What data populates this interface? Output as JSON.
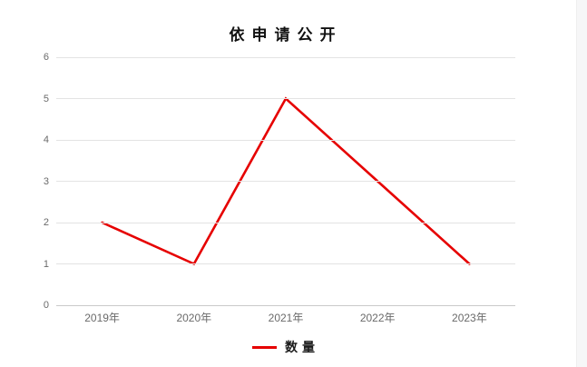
{
  "page": {
    "background_color": "#ffffff",
    "right_strip_color": "#f6f6f7"
  },
  "chart_data": {
    "type": "line",
    "title": "依申请公开",
    "categories": [
      "2019年",
      "2020年",
      "2021年",
      "2022年",
      "2023年"
    ],
    "series": [
      {
        "name": "数量",
        "color": "#e60000",
        "values": [
          2,
          1,
          5,
          3,
          1
        ]
      }
    ],
    "xlabel": "",
    "ylabel": "",
    "ylim": [
      0,
      6
    ],
    "yticks": [
      0,
      1,
      2,
      3,
      4,
      5,
      6
    ],
    "grid": true,
    "gridline_color": "#e3e3e3",
    "axis_line_color": "#c9c9c9",
    "tick_label_color": "#6a6a6a",
    "legend_position": "bottom"
  }
}
